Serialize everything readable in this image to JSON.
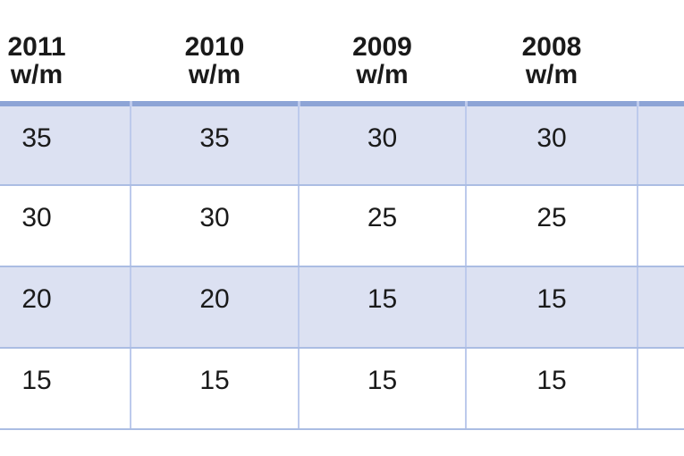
{
  "colors": {
    "header-rule": "#8da4d6",
    "row-stripe": "#dce1f2",
    "grid-vertical": "#bdcaec",
    "grid-horizontal": "#abbde3",
    "text": "#1a1a1a",
    "background": "#ffffff"
  },
  "table": {
    "columns": [
      {
        "year": "2011",
        "unit": "w/m"
      },
      {
        "year": "2010",
        "unit": "w/m"
      },
      {
        "year": "2009",
        "unit": "w/m"
      },
      {
        "year": "2008",
        "unit": "w/m"
      },
      {
        "year": "",
        "unit": ""
      }
    ],
    "rows": [
      {
        "cells": [
          "35",
          "35",
          "30",
          "30",
          ""
        ]
      },
      {
        "cells": [
          "30",
          "30",
          "25",
          "25",
          ""
        ]
      },
      {
        "cells": [
          "20",
          "20",
          "15",
          "15",
          ""
        ]
      },
      {
        "cells": [
          "15",
          "15",
          "15",
          "15",
          ""
        ]
      }
    ]
  }
}
